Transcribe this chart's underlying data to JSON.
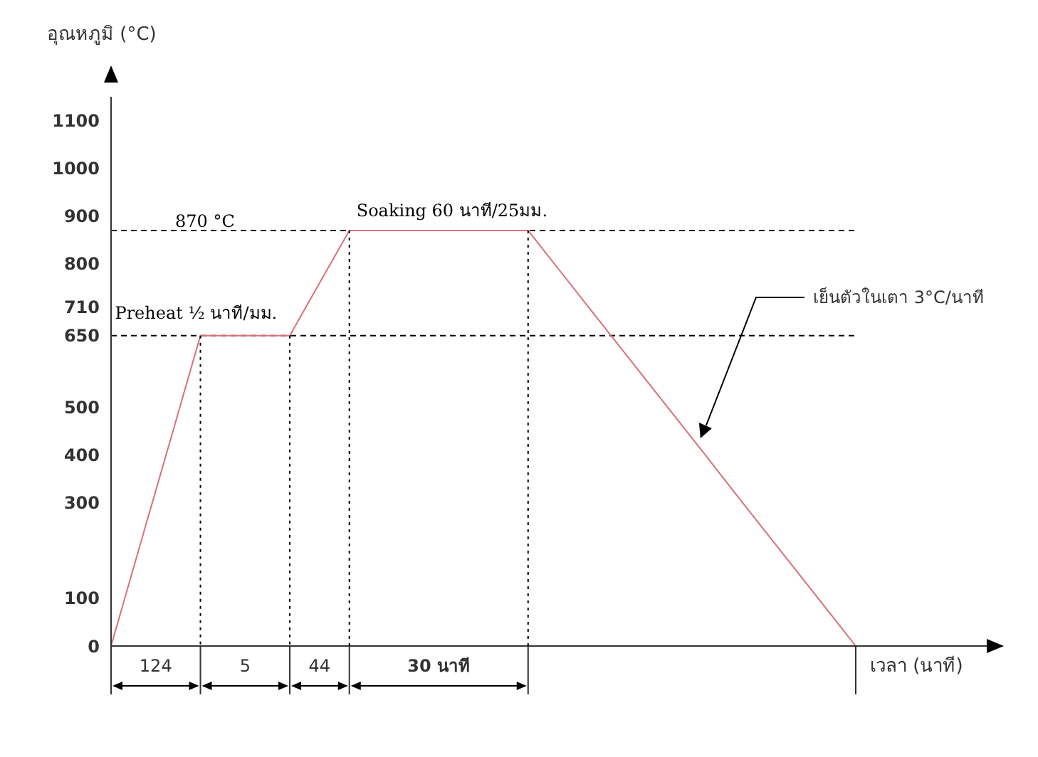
{
  "chart_data": {
    "type": "line",
    "xlabel": "เวลา (นาที)",
    "ylabel": "อุณหภูมิ (°C)",
    "categories": [
      null,
      null,
      null,
      null,
      null,
      null,
      null,
      null,
      null,
      null,
      null,
      null,
      null,
      null,
      null,
      null,
      null,
      null,
      null,
      null,
      null,
      null,
      null,
      null,
      null,
      null
    ],
    "series": [
      {
        "color": "#d9707a",
        "values": [
          0,
          217,
          433,
          650,
          650,
          650,
          650,
          760,
          870,
          870,
          870,
          870,
          870,
          870,
          870,
          791,
          712,
          633,
          554,
          475,
          396,
          316,
          237,
          158,
          79,
          0
        ]
      }
    ],
    "ylim": [
      0,
      1150
    ],
    "yticks": [
      0,
      100,
      300,
      400,
      500,
      650,
      710,
      800,
      900,
      1000,
      1100
    ],
    "ref_lines": [
      {
        "axis": "y",
        "value": 650,
        "line_style": "dashed",
        "color": "#000000"
      },
      {
        "axis": "y",
        "value": 870,
        "label": "870 °C",
        "line_style": "dashed",
        "color": "#000000"
      }
    ],
    "annotations": [
      "124",
      "5",
      "44",
      "30 นาที",
      "Preheat ½ นาที/มม.",
      "Soaking 60 นาที/25มม.",
      "เย็นตัวในเตา 3°C/นาที"
    ],
    "grid": false,
    "legend": false,
    "marker": "none",
    "line_style": "solid"
  }
}
